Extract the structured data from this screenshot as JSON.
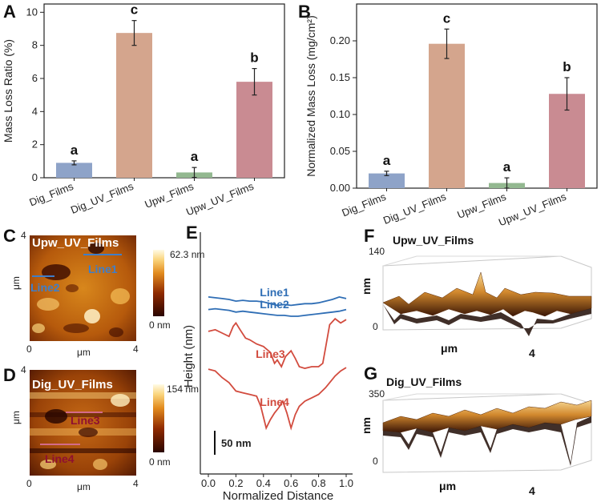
{
  "chart_data": [
    {
      "panel": "A",
      "type": "bar",
      "ylabel": "Mass Loss Ratio (%)",
      "ylim": [
        0,
        10.5
      ],
      "yticks": [
        0,
        2,
        4,
        6,
        8,
        10
      ],
      "ytick_labels": [
        "0",
        "2",
        "4",
        "6",
        "8",
        "10"
      ],
      "categories": [
        "Dig_Films",
        "Dig_UV_Films",
        "Upw_Films",
        "Upw_UV_Films"
      ],
      "values": [
        0.9,
        8.75,
        0.32,
        5.8
      ],
      "errors": [
        0.12,
        0.75,
        0.3,
        0.8
      ],
      "significance": [
        "a",
        "c",
        "a",
        "b"
      ],
      "colors": [
        "#8ea3c8",
        "#d4a58d",
        "#93b890",
        "#c98b92"
      ]
    },
    {
      "panel": "B",
      "type": "bar",
      "ylabel": "Normalized Mass Loss (mg/cm²)",
      "ylim": [
        0,
        0.25
      ],
      "yticks": [
        0.0,
        0.05,
        0.1,
        0.15,
        0.2
      ],
      "ytick_labels": [
        "0.00",
        "0.05",
        "0.10",
        "0.15",
        "0.20"
      ],
      "categories": [
        "Dig_Films",
        "Dig_UV_Films",
        "Upw_Films",
        "Upw_UV_Films"
      ],
      "values": [
        0.02,
        0.196,
        0.007,
        0.128
      ],
      "errors": [
        0.003,
        0.02,
        0.007,
        0.022
      ],
      "significance": [
        "a",
        "c",
        "a",
        "b"
      ],
      "colors": [
        "#8ea3c8",
        "#d4a58d",
        "#93b890",
        "#c98b92"
      ]
    },
    {
      "panel": "E",
      "type": "line",
      "xlabel": "Normalized Distance",
      "ylabel": "Height (nm)",
      "xlim": [
        0,
        1
      ],
      "xticks": [
        0.0,
        0.2,
        0.4,
        0.6,
        0.8,
        1.0
      ],
      "xtick_labels": [
        "0.0",
        "0.2",
        "0.4",
        "0.6",
        "0.8",
        "1.0"
      ],
      "scale_bar_label": "50 nm",
      "series": [
        {
          "name": "Line1",
          "color": "#2f6eb5",
          "offset": 16,
          "x": [
            0,
            0.05,
            0.1,
            0.15,
            0.2,
            0.25,
            0.3,
            0.35,
            0.4,
            0.45,
            0.5,
            0.55,
            0.6,
            0.65,
            0.7,
            0.75,
            0.8,
            0.85,
            0.9,
            0.95,
            1.0
          ],
          "y": [
            7,
            6,
            5,
            4,
            2,
            3,
            2,
            2,
            1,
            -1,
            -3,
            -2,
            -3,
            -2,
            -1,
            -1,
            0,
            2,
            4,
            7,
            5
          ]
        },
        {
          "name": "Line2",
          "color": "#2f6eb5",
          "offset": 2,
          "x": [
            0,
            0.05,
            0.1,
            0.15,
            0.2,
            0.25,
            0.3,
            0.35,
            0.4,
            0.45,
            0.5,
            0.55,
            0.6,
            0.65,
            0.7,
            0.75,
            0.8,
            0.85,
            0.9,
            0.95,
            1.0
          ],
          "y": [
            6,
            7,
            6,
            5,
            3,
            4,
            3,
            2,
            1,
            0,
            -1,
            -1,
            -2,
            -2,
            -1,
            0,
            1,
            2,
            3,
            4,
            6
          ]
        },
        {
          "name": "Line3",
          "color": "#d24b3e",
          "offset": -38,
          "x": [
            0,
            0.05,
            0.1,
            0.15,
            0.18,
            0.2,
            0.23,
            0.27,
            0.3,
            0.35,
            0.4,
            0.45,
            0.48,
            0.5,
            0.53,
            0.56,
            0.6,
            0.63,
            0.66,
            0.7,
            0.75,
            0.8,
            0.83,
            0.85,
            0.88,
            0.92,
            0.96,
            1.0
          ],
          "y": [
            20,
            22,
            18,
            14,
            26,
            30,
            22,
            12,
            10,
            5,
            2,
            -5,
            -18,
            -14,
            -22,
            -10,
            -3,
            -12,
            -22,
            -24,
            -22,
            -22,
            -18,
            0,
            28,
            35,
            30,
            34
          ]
        },
        {
          "name": "Line4",
          "color": "#d24b3e",
          "offset": -95,
          "x": [
            0,
            0.05,
            0.1,
            0.15,
            0.2,
            0.25,
            0.3,
            0.35,
            0.38,
            0.42,
            0.45,
            0.48,
            0.51,
            0.54,
            0.57,
            0.6,
            0.63,
            0.66,
            0.7,
            0.75,
            0.8,
            0.85,
            0.88,
            0.92,
            0.96,
            1.0
          ],
          "y": [
            32,
            30,
            22,
            16,
            6,
            4,
            2,
            0,
            -12,
            -38,
            -28,
            -20,
            -14,
            -6,
            -20,
            -38,
            -22,
            -12,
            -6,
            -2,
            2,
            10,
            16,
            24,
            30,
            34
          ]
        }
      ]
    }
  ],
  "afm": {
    "C": {
      "title": "Upw_UV_Films",
      "max_label": "62.3 nm",
      "min_label": "0 nm",
      "lines": [
        "Line1",
        "Line2"
      ],
      "x_tick0": "0",
      "x_tick_end": "4",
      "y_tick_end": "4",
      "x_unit": "μm",
      "y_unit": "μm"
    },
    "D": {
      "title": "Dig_UV_Films",
      "max_label": "154 nm",
      "min_label": "0 nm",
      "lines": [
        "Line3",
        "Line4"
      ],
      "x_tick0": "0",
      "x_tick_end": "4",
      "y_tick_end": "4",
      "x_unit": "μm",
      "y_unit": "μm"
    }
  },
  "surf3d": {
    "F": {
      "title": "Upw_UV_Films",
      "z_max": "140",
      "z_min": "0",
      "z_unit": "nm",
      "x_unit": "μm",
      "x_tick": "4"
    },
    "G": {
      "title": "Dig_UV_Films",
      "z_max": "350",
      "z_min": "0",
      "z_unit": "nm",
      "x_unit": "μm",
      "x_tick": "4"
    }
  },
  "panel_letters": [
    "A",
    "B",
    "C",
    "D",
    "E",
    "F",
    "G"
  ]
}
